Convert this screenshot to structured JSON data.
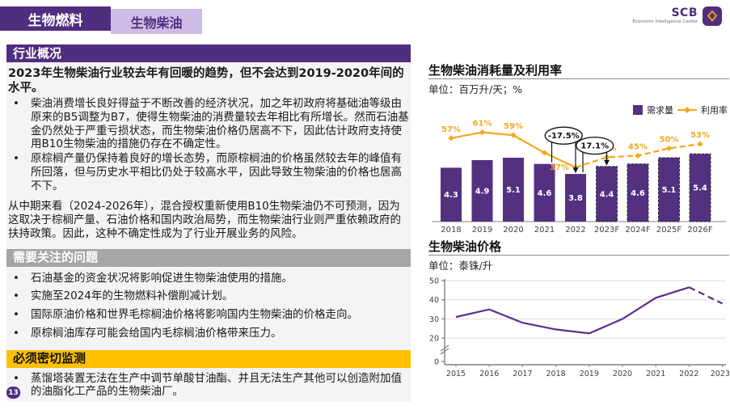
{
  "header": {
    "tab_primary": "生物燃料",
    "tab_secondary": "生物柴油",
    "logo": {
      "brand": "SCB",
      "subtitle": "Economic Intelligence Center"
    }
  },
  "page_number": "13",
  "palette": {
    "brand_purple": "#4F2D7F",
    "light_purple": "#CDBCE5",
    "bar_purple": "#533180",
    "orange": "#F9A51A",
    "yellow": "#FFC000",
    "gray": "#A6A6A6",
    "price_purple": "#5C2E91"
  },
  "overview": {
    "heading": "行业概况",
    "lead": "2023年生物柴油行业较去年有回暖的趋势，但不会达到2019-2020年间的水平。",
    "bullets": [
      "柴油消费增长良好得益于不断改善的经济状况，加之年初政府将基础油等级由原来的B5调整为B7，使得生物柴油的消费量较去年相比有所增长。然而石油基金仍然处于严重亏损状态，而生物柴油价格仍居高不下，因此估计政府支持使用B10生物柴油的措施仍存在不确定性。",
      "原棕榈产量仍保持着良好的增长态势，而原棕榈油的价格虽然较去年的峰值有所回落，但与历史水平相比仍处于较高水平，因此导致生物柴油的价格也居高不下。"
    ],
    "paragraph": "从中期来看（2024-2026年），混合授权重新使用B10生物柴油仍不可预测，因为这取决于棕榈产量、石油价格和国内政治局势，而生物柴油行业则严重依赖政府的扶持政策。因此，这种不确定性成为了行业开展业务的风险。"
  },
  "watch": {
    "heading": "需要关注的问题",
    "bullets": [
      "石油基金的资金状况将影响促进生物柴油使用的措施。",
      "实施至2024年的生物燃料补偿削减计划。",
      "国际原油价格和世界毛棕榈油价格将影响国内生物柴油的价格走向。",
      "原棕榈油库存可能会给国内毛棕榈油价格带来压力。"
    ]
  },
  "monitor": {
    "heading": "必须密切监测",
    "bullets": [
      "蒸馏塔装置无法在生产中调节单酸甘油酯、并且无法生产其他可以创造附加值的油脂化工产品的生物柴油厂。"
    ]
  },
  "chart_data": [
    {
      "type": "bar",
      "title": "生物柴油消耗量及利用率",
      "unit_label": "单位：百万升/天；%",
      "categories": [
        "2018",
        "2019",
        "2020",
        "2021",
        "2022",
        "2023F",
        "2024F",
        "2025F",
        "2026F"
      ],
      "series": [
        {
          "name": "需求量",
          "type": "bar",
          "values": [
            4.3,
            4.9,
            5.1,
            4.6,
            3.8,
            4.4,
            4.6,
            5.1,
            5.4
          ],
          "color": "#533180",
          "forecast_from_index": 5
        },
        {
          "name": "利用率",
          "type": "line",
          "values": [
            57,
            61,
            59,
            47,
            37,
            44,
            45,
            50,
            53
          ],
          "labels": [
            "57%",
            "61%",
            "59%",
            "",
            "37%",
            "44%",
            "45%",
            "50%",
            "53%"
          ],
          "color": "#F9A51A",
          "label_color": "#F6A723",
          "forecast_from_index": 4
        }
      ],
      "annotations": [
        {
          "label": "-17.5%",
          "from": "2021",
          "to": "2022"
        },
        {
          "label": "17.1%",
          "from": "2022",
          "to": "2023F"
        }
      ],
      "legend_position": "top-right"
    },
    {
      "type": "line",
      "title": "生物柴油价格",
      "unit_label": "单位：泰铢/升",
      "x": [
        "2015",
        "2016",
        "2017",
        "2018",
        "2019",
        "2020",
        "2021",
        "2022",
        "2023F"
      ],
      "values": [
        31,
        35,
        28,
        24.5,
        22.5,
        30,
        41,
        46.5,
        38
      ],
      "yticks": [
        0,
        20,
        30,
        40,
        50
      ],
      "ylim": [
        0,
        50
      ],
      "axis_break": true,
      "grid": true,
      "forecast_from_index": 7,
      "color": "#5C2E91"
    }
  ]
}
